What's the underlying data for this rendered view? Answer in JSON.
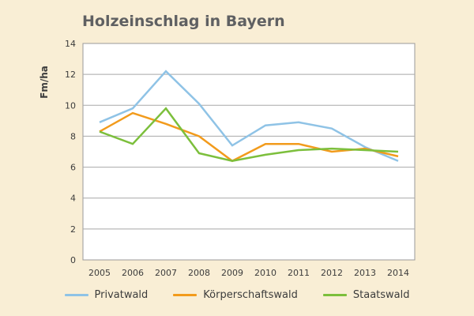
{
  "chart_data": {
    "type": "line",
    "title": "Holzeinschlag in Bayern",
    "ylabel": "Fm/ha",
    "xlabel": "",
    "x": [
      "2005",
      "2006",
      "2007",
      "2008",
      "2009",
      "2010",
      "2011",
      "2012",
      "2013",
      "2014"
    ],
    "ylim": [
      0,
      14
    ],
    "yticks": [
      0,
      2,
      4,
      6,
      8,
      10,
      12,
      14
    ],
    "grid": true,
    "legend_position": "bottom",
    "series": [
      {
        "name": "Privatwald",
        "color": "#8fc3e6",
        "values": [
          8.9,
          9.8,
          12.2,
          10.1,
          7.4,
          8.7,
          8.9,
          8.5,
          7.3,
          6.4
        ]
      },
      {
        "name": "Körperschaftswald",
        "color": "#f29b1c",
        "values": [
          8.3,
          9.5,
          8.8,
          8.0,
          6.4,
          7.5,
          7.5,
          7.0,
          7.2,
          6.7
        ]
      },
      {
        "name": "Staatswald",
        "color": "#7cbf3c",
        "values": [
          8.3,
          7.5,
          9.8,
          6.9,
          6.4,
          6.8,
          7.1,
          7.2,
          7.1,
          7.0
        ]
      }
    ]
  }
}
